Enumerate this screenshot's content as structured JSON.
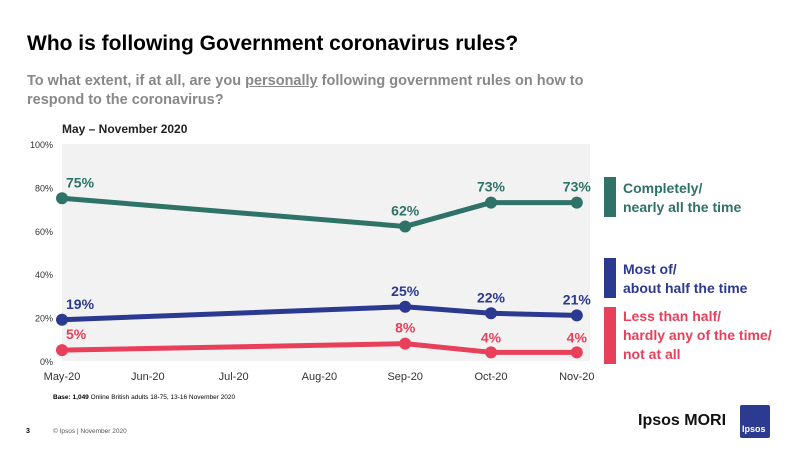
{
  "title": "Who is following Government coronavirus rules?",
  "subtitle_pre": "To what extent, if at all, are you ",
  "subtitle_em": "personally",
  "subtitle_post": " following government rules on how to respond to the coronavirus?",
  "period": "May – November 2020",
  "chart_data": {
    "type": "line",
    "categories": [
      "May-20",
      "Jun-20",
      "Jul-20",
      "Aug-20",
      "Sep-20",
      "Oct-20",
      "Nov-20"
    ],
    "ylim": [
      0,
      100
    ],
    "yticks": [
      "0%",
      "20%",
      "40%",
      "60%",
      "80%",
      "100%"
    ],
    "series": [
      {
        "name": "Completely/ nearly all the time",
        "color": "#2e7268",
        "points": [
          [
            "May-20",
            75
          ],
          [
            "Sep-20",
            62
          ],
          [
            "Oct-20",
            73
          ],
          [
            "Nov-20",
            73
          ]
        ]
      },
      {
        "name": "Most of/ about half the time",
        "color": "#2b3990",
        "points": [
          [
            "May-20",
            19
          ],
          [
            "Sep-20",
            25
          ],
          [
            "Oct-20",
            22
          ],
          [
            "Nov-20",
            21
          ]
        ]
      },
      {
        "name": "Less than half/ hardly any of the time/ not at all",
        "color": "#e8405a",
        "points": [
          [
            "May-20",
            5
          ],
          [
            "Sep-20",
            8
          ],
          [
            "Oct-20",
            4
          ],
          [
            "Nov-20",
            4
          ]
        ]
      }
    ]
  },
  "legend": [
    {
      "line1": "Completely/",
      "line2": "nearly all the time"
    },
    {
      "line1": "Most of/",
      "line2": "about half the time"
    },
    {
      "line1": "Less than half/",
      "line2": "hardly any of the time/",
      "line3": "not at all"
    }
  ],
  "footer": {
    "base_label": "Base:",
    "base_n": "1,049",
    "base_text": "Online British adults 18-75, 13-16 November 2020",
    "page": "3",
    "copyright": "© Ipsos | November 2020",
    "brand": "Ipsos MORI",
    "logo_text": "Ipsos"
  }
}
